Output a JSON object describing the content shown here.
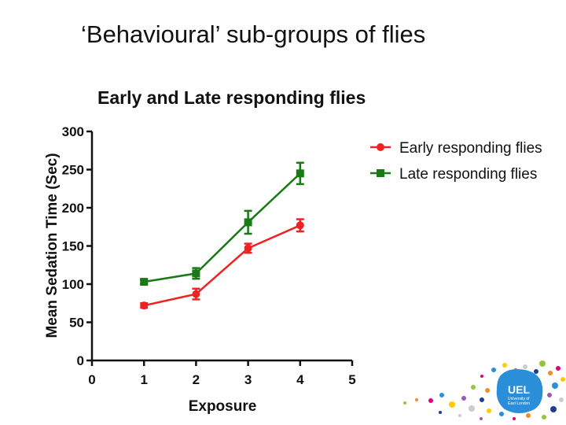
{
  "slide": {
    "title": "‘Behavioural’ sub-groups of flies"
  },
  "logo": {
    "name": "UEL",
    "line1": "University of",
    "line2": "East London"
  },
  "colors": {
    "early": "#ee2222",
    "late": "#177a17",
    "logo": "#2a8fd8"
  },
  "chart_data": {
    "type": "line",
    "title": "Early and Late responding flies",
    "xlabel": "Exposure",
    "ylabel": "Mean Sedation Time (Sec)",
    "xlim": [
      0,
      5
    ],
    "ylim": [
      0,
      300
    ],
    "xticks": [
      0,
      1,
      2,
      3,
      4,
      5
    ],
    "yticks": [
      0,
      50,
      100,
      150,
      200,
      250,
      300
    ],
    "grid": false,
    "legend_position": "top-right",
    "series": [
      {
        "name": "Early responding flies",
        "marker": "circle",
        "color": "#ee2222",
        "x": [
          1,
          2,
          3,
          4
        ],
        "y": [
          72,
          87,
          147,
          177
        ],
        "error": [
          3,
          7,
          6,
          8
        ]
      },
      {
        "name": "Late responding flies",
        "marker": "square",
        "color": "#177a17",
        "x": [
          1,
          2,
          3,
          4
        ],
        "y": [
          103,
          114,
          181,
          245
        ],
        "error": [
          3,
          7,
          15,
          14
        ]
      }
    ]
  }
}
